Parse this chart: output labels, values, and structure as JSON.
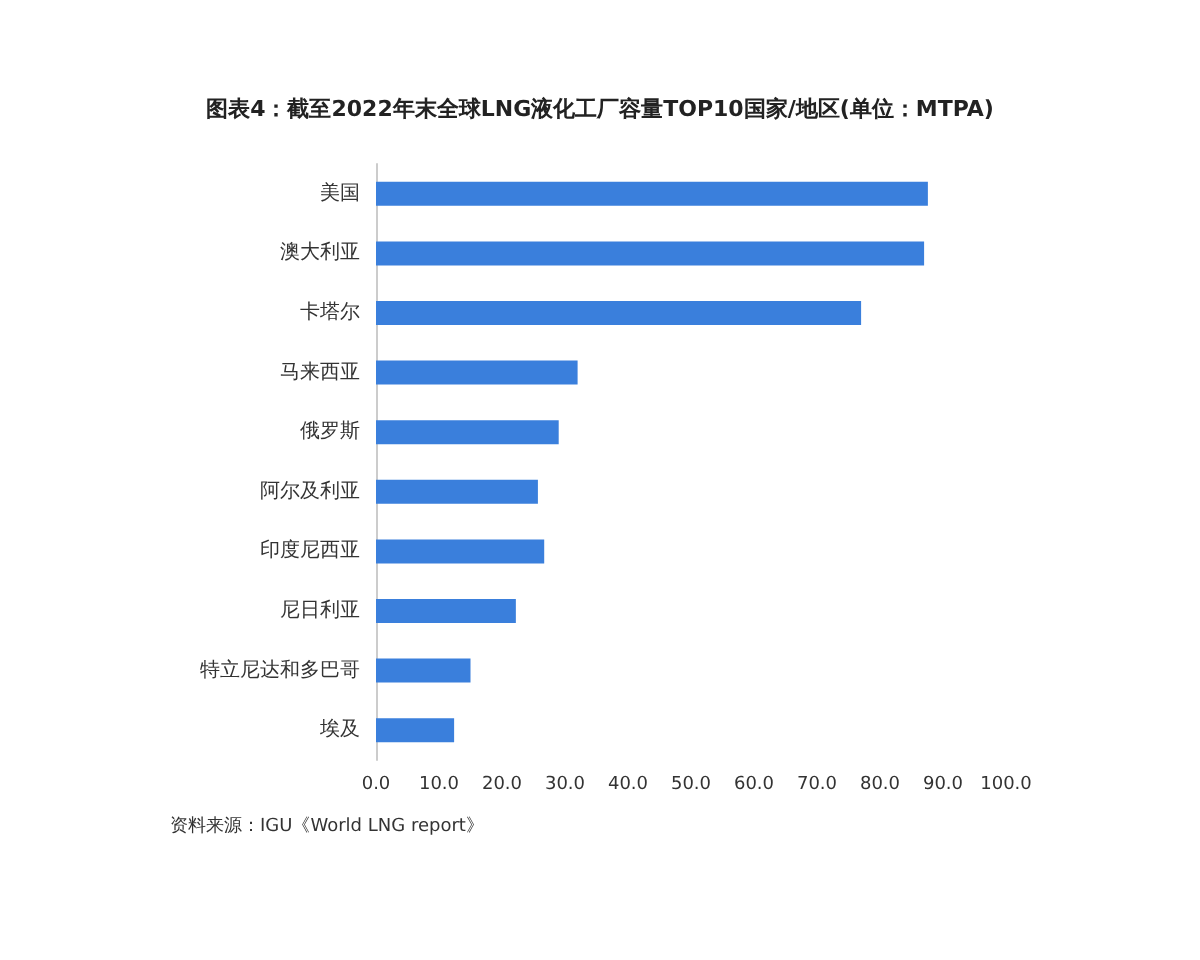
{
  "chart_data": {
    "type": "bar",
    "orientation": "horizontal",
    "title": "图表4：截至2022年末全球LNG液化工厂容量TOP10国家/地区(单位：MTPA)",
    "categories": [
      "美国",
      "澳大利亚",
      "卡塔尔",
      "马来西亚",
      "俄罗斯",
      "阿尔及利亚",
      "印度尼西亚",
      "尼日利亚",
      "特立尼达和多巴哥",
      "埃及"
    ],
    "values": [
      87.6,
      87.0,
      77.0,
      32.0,
      29.0,
      25.7,
      26.7,
      22.2,
      15.0,
      12.4
    ],
    "color": "#3a7fdc",
    "xlim": [
      0,
      100
    ],
    "xticks": [
      {
        "value": 0,
        "label": "0.0"
      },
      {
        "value": 10,
        "label": "10.0"
      },
      {
        "value": 20,
        "label": "20.0"
      },
      {
        "value": 30,
        "label": "30.0"
      },
      {
        "value": 40,
        "label": "40.0"
      },
      {
        "value": 50,
        "label": "50.0"
      },
      {
        "value": 60,
        "label": "60.0"
      },
      {
        "value": 70,
        "label": "70.0"
      },
      {
        "value": 80,
        "label": "80.0"
      },
      {
        "value": 90,
        "label": "90.0"
      },
      {
        "value": 100,
        "label": "100.0"
      }
    ],
    "grid": false,
    "annotations": [
      "资料来源：IGU《World LNG report》"
    ]
  }
}
